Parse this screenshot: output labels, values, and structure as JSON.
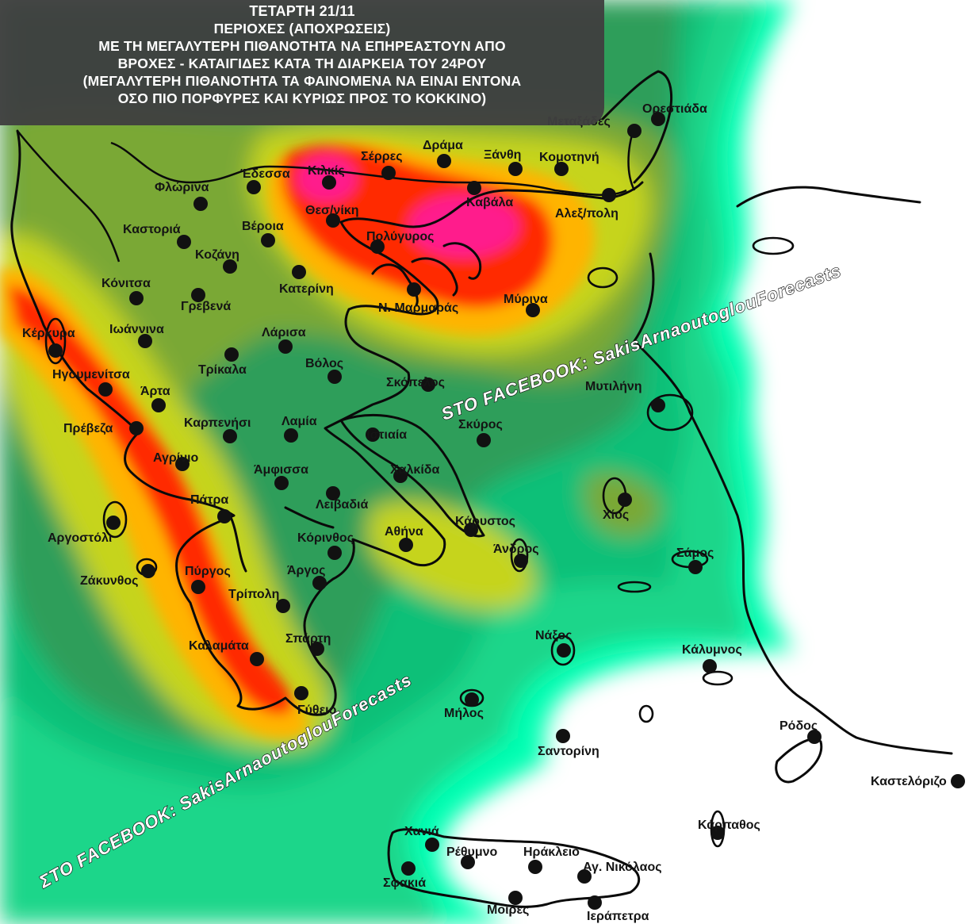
{
  "header": {
    "lines": [
      "ΤΕΤΑΡΤΗ 21/11",
      "ΠΕΡΙΟΧΕΣ (ΑΠΟΧΡΩΣΕΙΣ)",
      "ΜΕ ΤΗ ΜΕΓΑΛΥΤΕΡΗ ΠΙΘΑΝΟΤΗΤΑ ΝΑ ΕΠΗΡΕΑΣΤΟΥΝ ΑΠΟ",
      "ΒΡΟΧΕΣ - ΚΑΤΑΙΓΙΔΕΣ ΚΑΤΑ ΤΗ ΔΙΑΡΚΕΙΑ ΤΟΥ 24ΡΟΥ",
      "(ΜΕΓΑΛΥΤΕΡΗ ΠΙΘΑΝΟΤΗΤΑ ΤΑ ΦΑΙΝΟΜΕΝΑ ΝΑ ΕΙΝΑΙ ΕΝΤΟΝΑ",
      "ΟΣΟ ΠΙΟ ΠΟΡΦΥΡΕΣ ΚΑΙ ΚΥΡΙΩΣ ΠΡΟΣ ΤΟ ΚΟΚΚΙΝΟ)"
    ]
  },
  "watermarks": {
    "top": "STO FACEBOOK: SakisArnaoutoglouForecasts",
    "bottom": "ΣΤΟ FACEBOOK: SakisArnaoutoglouForecasts"
  },
  "palette": {
    "none": "#ffffff",
    "cyan": "#00ffb2",
    "aqua": "#33f0a0",
    "green_light": "#1ed68a",
    "green_mid": "#10c078",
    "green_dark": "#2f9e5a",
    "olive": "#7aa834",
    "olive_dark": "#6a9a2c",
    "yellow_green": "#c6d41a",
    "orange": "#ffb400",
    "red": "#ff2a00",
    "magenta": "#ff1a8c"
  },
  "cities": [
    {
      "id": "orestiada",
      "label": "Ορεστιάδα"
    },
    {
      "id": "metaxades",
      "label": "Μεταξάδες"
    },
    {
      "id": "serres",
      "label": "Σέρρες"
    },
    {
      "id": "drama",
      "label": "Δράμα"
    },
    {
      "id": "xanthi",
      "label": "Ξάνθη"
    },
    {
      "id": "komotini",
      "label": "Κομοτηνή"
    },
    {
      "id": "edessa",
      "label": "Έδεσσα"
    },
    {
      "id": "kilkis",
      "label": "Κιλκίς"
    },
    {
      "id": "florina",
      "label": "Φλώρινα"
    },
    {
      "id": "thessaloniki",
      "label": "Θεσ/νίκη"
    },
    {
      "id": "kavala",
      "label": "Καβάλα"
    },
    {
      "id": "alexandroupoli",
      "label": "Αλεξ/πολη"
    },
    {
      "id": "kastoria",
      "label": "Καστοριά"
    },
    {
      "id": "veroia",
      "label": "Βέροια"
    },
    {
      "id": "polygyros",
      "label": "Πολύγυρος"
    },
    {
      "id": "kozani",
      "label": "Κοζάνη"
    },
    {
      "id": "konitsa",
      "label": "Κόνιτσα"
    },
    {
      "id": "katerini",
      "label": "Κατερίνη"
    },
    {
      "id": "grevena",
      "label": "Γρεβενά"
    },
    {
      "id": "myrina",
      "label": "Μύρινα"
    },
    {
      "id": "marmaras",
      "label": "Ν. Μαρμαράς"
    },
    {
      "id": "kerkyra",
      "label": "Κέρκυρα"
    },
    {
      "id": "ioannina",
      "label": "Ιωάννινα"
    },
    {
      "id": "larisa",
      "label": "Λάρισα"
    },
    {
      "id": "igoumenitsa",
      "label": "Ηγουμενίτσα"
    },
    {
      "id": "trikala",
      "label": "Τρίκαλα"
    },
    {
      "id": "volos",
      "label": "Βόλος"
    },
    {
      "id": "skopelos",
      "label": "Σκόπελος"
    },
    {
      "id": "mytilini",
      "label": "Μυτιλήνη"
    },
    {
      "id": "arta",
      "label": "Άρτα"
    },
    {
      "id": "preveza",
      "label": "Πρέβεζα"
    },
    {
      "id": "karpenisi",
      "label": "Καρπενήσι"
    },
    {
      "id": "lamia",
      "label": "Λαμία"
    },
    {
      "id": "skyros",
      "label": "Σκύρος"
    },
    {
      "id": "istiaia",
      "label": "Ιστιαία"
    },
    {
      "id": "agrinio",
      "label": "Αγρίνιο"
    },
    {
      "id": "amfissa",
      "label": "Άμφισσα"
    },
    {
      "id": "chalkida",
      "label": "Χαλκίδα"
    },
    {
      "id": "patra",
      "label": "Πάτρα"
    },
    {
      "id": "livadeia",
      "label": "Λειβαδιά"
    },
    {
      "id": "chios",
      "label": "Χίος"
    },
    {
      "id": "argostoli",
      "label": "Αργοστόλι"
    },
    {
      "id": "karystos",
      "label": "Κάρυστος"
    },
    {
      "id": "korinthos",
      "label": "Κόρινθος"
    },
    {
      "id": "athina",
      "label": "Αθήνα"
    },
    {
      "id": "andros",
      "label": "Άνδρος"
    },
    {
      "id": "samos",
      "label": "Σάμος"
    },
    {
      "id": "zakynthos",
      "label": "Ζάκυνθος"
    },
    {
      "id": "pyrgos",
      "label": "Πύργος"
    },
    {
      "id": "argos",
      "label": "Άργος"
    },
    {
      "id": "tripoli",
      "label": "Τρίπολη"
    },
    {
      "id": "naxos",
      "label": "Νάξος"
    },
    {
      "id": "sparti",
      "label": "Σπάρτη"
    },
    {
      "id": "kalamata",
      "label": "Καλαμάτα"
    },
    {
      "id": "kalymnos",
      "label": "Κάλυμνος"
    },
    {
      "id": "gytheio",
      "label": "Γύθειο"
    },
    {
      "id": "milos",
      "label": "Μήλος"
    },
    {
      "id": "rodos",
      "label": "Ρόδος"
    },
    {
      "id": "santorini",
      "label": "Σαντορίνη"
    },
    {
      "id": "kastelorizo",
      "label": "Καστελόριζο"
    },
    {
      "id": "karpathos",
      "label": "Κάρπαθος"
    },
    {
      "id": "chania",
      "label": "Χανιά"
    },
    {
      "id": "rethymno",
      "label": "Ρέθυμνο"
    },
    {
      "id": "irakleio",
      "label": "Ηράκλειο"
    },
    {
      "id": "agnikolaos",
      "label": "Αγ. Νικόλαος"
    },
    {
      "id": "sfakia",
      "label": "Σφακιά"
    },
    {
      "id": "moires",
      "label": "Μοίρες"
    },
    {
      "id": "ierapetra",
      "label": "Ιεράπετρα"
    }
  ]
}
